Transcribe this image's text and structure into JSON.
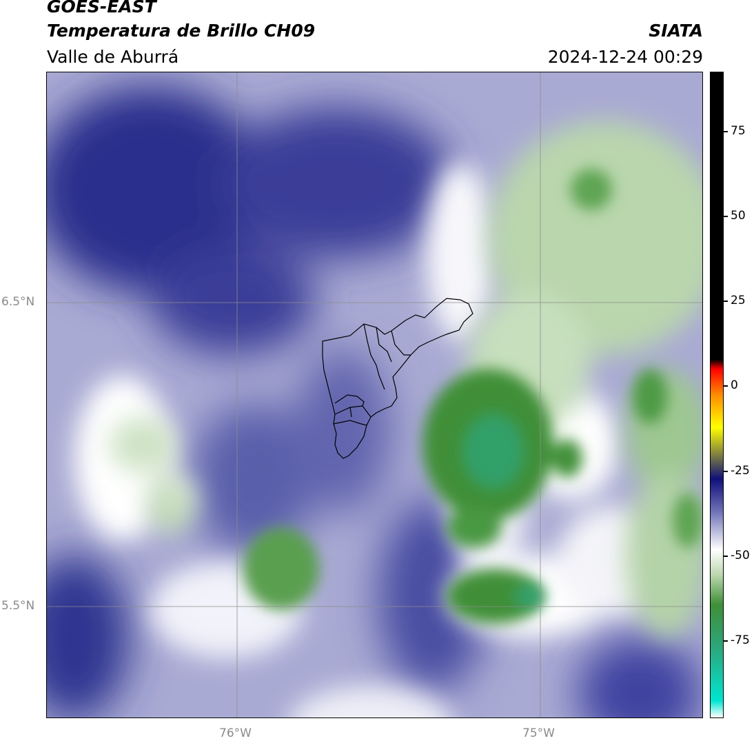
{
  "header": {
    "satellite": "GOES-EAST",
    "product": "Temperatura de Brillo CH09",
    "region": "Valle de Aburrá",
    "agency": "SIATA",
    "datetime": "2024-12-24 00:29"
  },
  "map": {
    "lat_labels": [
      "6.5°N",
      "5.5°N"
    ],
    "lon_labels": [
      "76°W",
      "75°W"
    ],
    "colors": {
      "cold_blue": "#2a2f8c",
      "mid_blue": "#7c80c0",
      "white": "#ffffff",
      "light_green": "#b9d6ad",
      "green": "#3f8f37",
      "teal_green": "#2ea57a"
    }
  },
  "colorbar": {
    "tick_labels": [
      "75",
      "50",
      "25",
      "0",
      "-25",
      "-50",
      "-75"
    ],
    "stops": [
      {
        "color": "#ffffff"
      },
      {
        "color": "#00e5d0"
      },
      {
        "color": "#2ea57a"
      },
      {
        "color": "#3f8f37"
      },
      {
        "color": "#b9d6ad"
      },
      {
        "color": "#ffffff"
      },
      {
        "color": "#6c70b6"
      },
      {
        "color": "#10107a"
      },
      {
        "color": "#ffff00"
      },
      {
        "color": "#ff8c00"
      },
      {
        "color": "#ff0000"
      },
      {
        "color": "#000000"
      }
    ]
  }
}
